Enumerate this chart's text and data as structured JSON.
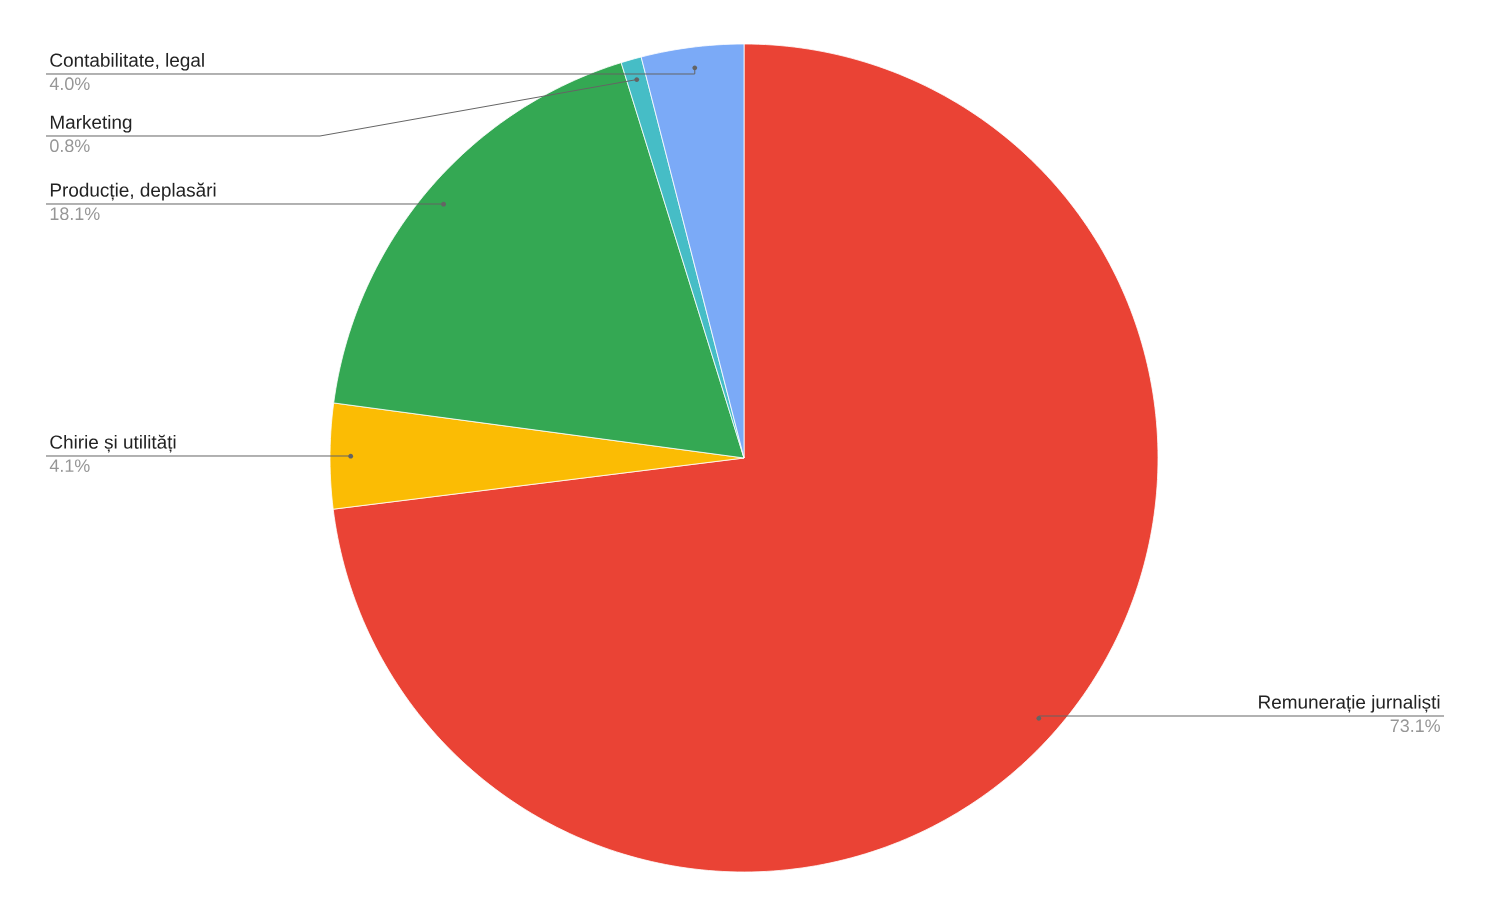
{
  "chart_data": {
    "type": "pie",
    "categories": [
      "Remunerație jurnaliști",
      "Chirie și utilități",
      "Producție, deplasări",
      "Marketing",
      "Contabilitate, legal"
    ],
    "values": [
      73.1,
      4.1,
      18.1,
      0.8,
      4.0
    ],
    "colors": [
      "#ea4335",
      "#fbbc04",
      "#34a853",
      "#46bdc6",
      "#7baaf7"
    ],
    "value_labels": [
      "73.1%",
      "4.1%",
      "18.1%",
      "0.8%",
      "4.0%"
    ]
  }
}
